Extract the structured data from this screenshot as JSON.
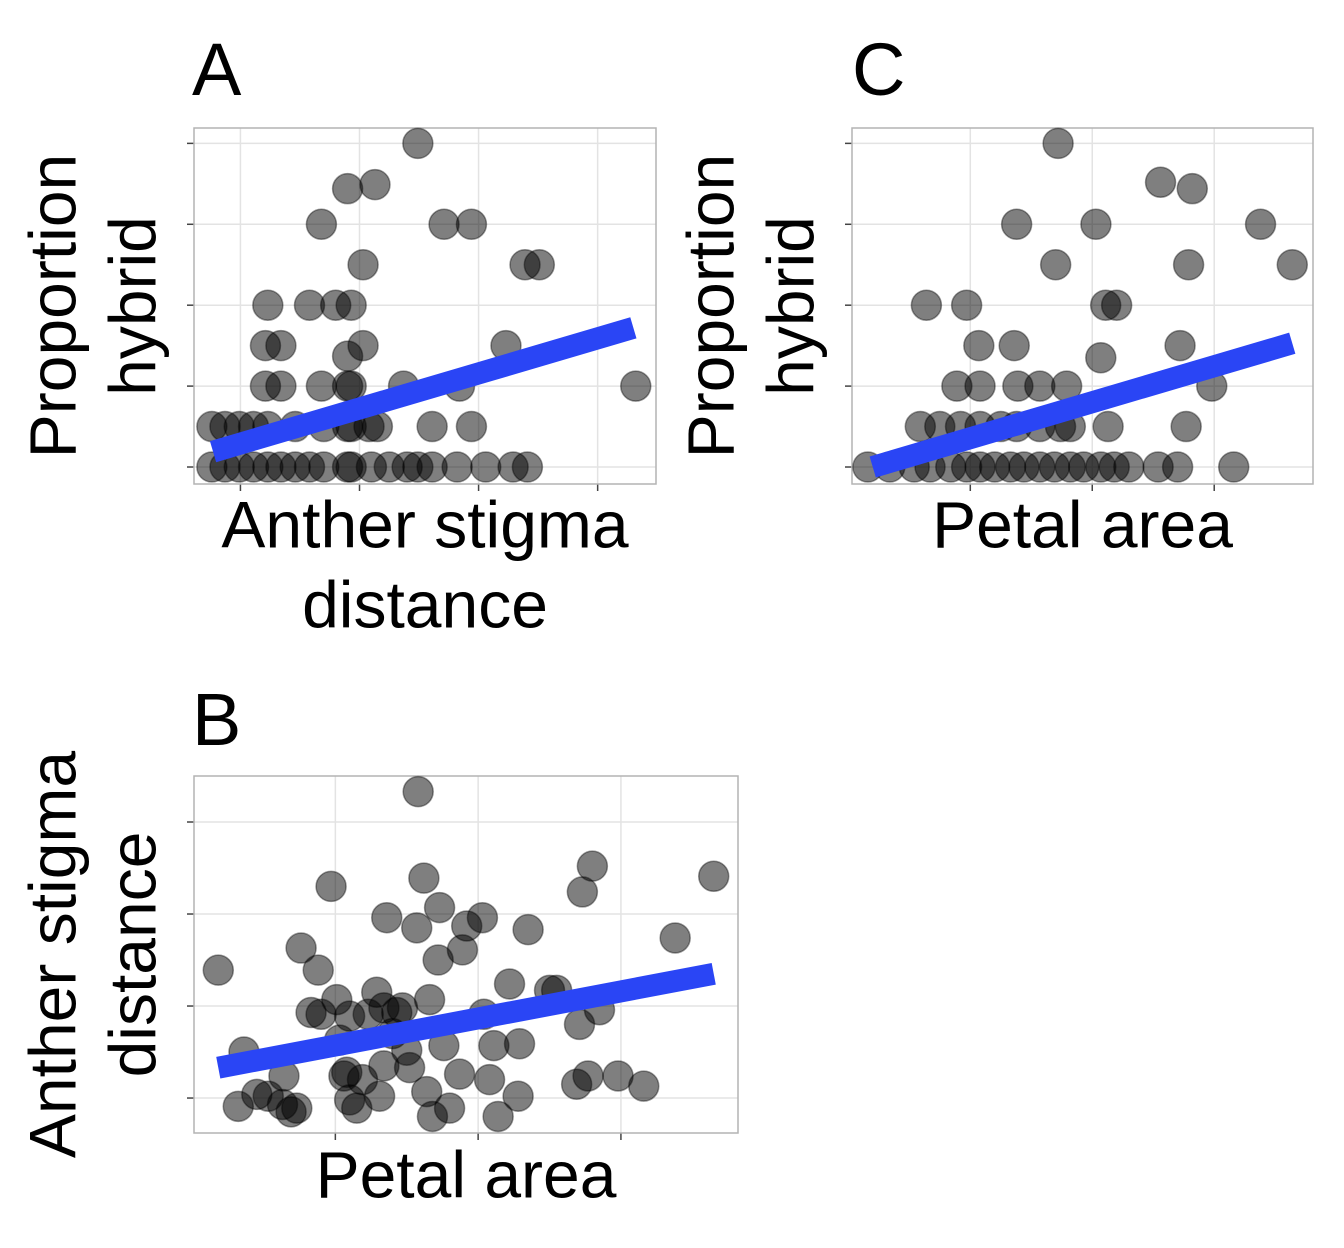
{
  "chart_data": [
    {
      "type": "scatter",
      "title": "A",
      "xlabel": [
        "Anther stigma",
        "distance"
      ],
      "ylabel": [
        "Proportion",
        "hybrid"
      ],
      "color": "#000000",
      "alpha": 0.5,
      "grid": true,
      "x": [
        -0.24,
        -0.13,
        -0.01,
        0.11,
        0.23,
        0.34,
        0.46,
        0.58,
        0.7,
        0.9,
        0.93,
        1.1,
        1.25,
        1.4,
        1.49,
        1.61,
        1.82,
        2.06,
        2.29,
        2.41,
        -0.24,
        -0.13,
        -0.01,
        0.11,
        0.23,
        0.46,
        0.7,
        0.9,
        0.93,
        1.08,
        1.15,
        1.61,
        1.94,
        0.21,
        0.34,
        0.68,
        0.9,
        0.93,
        1.37,
        1.84,
        3.32,
        0.9,
        0.21,
        0.34,
        1.03,
        2.23,
        0.23,
        0.58,
        0.8,
        0.93,
        1.03,
        2.39,
        2.51,
        0.68,
        1.71,
        1.94,
        0.9,
        1.13,
        1.49
      ],
      "values": [
        0,
        0,
        0,
        0,
        0,
        0,
        0,
        0,
        0,
        0,
        0,
        0,
        0,
        0,
        0,
        0,
        0,
        0,
        0,
        0,
        0.5,
        0.5,
        0.5,
        0.5,
        0.5,
        0.5,
        0.5,
        0.5,
        0.5,
        0.5,
        0.5,
        0.5,
        0.5,
        1,
        1,
        1,
        1,
        1,
        1,
        1,
        1,
        1.37,
        1.5,
        1.5,
        1.5,
        1.5,
        2,
        2,
        2,
        2,
        2.5,
        2.5,
        2.5,
        3,
        3,
        3,
        3.44,
        3.49,
        4
      ],
      "trend": {
        "color": "#2a45f5",
        "x": [
          -0.23,
          3.3
        ],
        "values": [
          0.19,
          1.72
        ]
      },
      "xlim": [
        -0.39,
        3.49
      ],
      "ylim": [
        -0.21,
        4.19
      ],
      "xticks": [
        0,
        1,
        2,
        3
      ],
      "yticks": [
        0,
        1,
        2,
        3,
        4
      ]
    },
    {
      "type": "scatter",
      "title": "C",
      "xlabel": [
        "Petal area"
      ],
      "ylabel": [
        "Proportion",
        "hybrid"
      ],
      "color": "#000000",
      "alpha": 0.5,
      "grid": true,
      "x": [
        -0.84,
        -0.66,
        -0.46,
        -0.33,
        -0.16,
        -0.03,
        0.08,
        0.2,
        0.33,
        0.44,
        0.57,
        0.69,
        0.82,
        0.93,
        1.07,
        1.18,
        1.3,
        1.54,
        1.7,
        2.16,
        -0.41,
        -0.25,
        -0.08,
        0.08,
        0.25,
        0.38,
        0.57,
        0.74,
        0.82,
        1.13,
        1.77,
        -0.11,
        0.08,
        0.39,
        0.57,
        0.79,
        1.98,
        0.07,
        0.36,
        1.07,
        1.72,
        -0.36,
        -0.03,
        1.11,
        1.2,
        0.7,
        1.79,
        2.64,
        0.38,
        1.03,
        2.38,
        1.56,
        1.82,
        0.72
      ],
      "values": [
        0,
        0,
        0,
        0,
        0,
        0,
        0,
        0,
        0,
        0,
        0,
        0,
        0,
        0,
        0,
        0,
        0,
        0,
        0,
        0,
        0.5,
        0.5,
        0.5,
        0.5,
        0.5,
        0.5,
        0.5,
        0.5,
        0.5,
        0.5,
        0.5,
        1,
        1,
        1,
        1,
        1,
        1,
        1.5,
        1.5,
        1.35,
        1.5,
        2,
        2,
        2,
        2,
        2.5,
        2.5,
        2.5,
        3,
        3,
        3,
        3.52,
        3.44,
        4
      ],
      "trend": {
        "color": "#2a45f5",
        "x": [
          -0.8,
          2.64
        ],
        "values": [
          0,
          1.53
        ]
      },
      "xlim": [
        -0.97,
        2.81
      ],
      "ylim": [
        -0.21,
        4.19
      ],
      "xticks": [
        0,
        1,
        2
      ],
      "yticks": [
        0,
        1,
        2,
        3,
        4
      ]
    },
    {
      "type": "scatter",
      "title": "B",
      "xlabel": [
        "Petal area"
      ],
      "ylabel": [
        "Anther stigma",
        "distance"
      ],
      "color": "#000000",
      "alpha": 0.5,
      "grid": true,
      "x": [
        -0.82,
        -0.64,
        -0.68,
        -0.47,
        -0.37,
        -0.31,
        -0.27,
        -0.36,
        -0.24,
        -0.12,
        -0.03,
        -0.17,
        -0.1,
        0.01,
        0.03,
        0.06,
        0.08,
        0.1,
        0.15,
        0.19,
        0.23,
        0.29,
        0.36,
        0.34,
        0.4,
        0.31,
        0.34,
        0.43,
        0.5,
        0.52,
        0.57,
        0.58,
        0.62,
        0.66,
        0.64,
        0.68,
        0.73,
        0.72,
        0.76,
        0.8,
        0.89,
        0.92,
        0.87,
        1.03,
        1.04,
        1.08,
        1.11,
        1.14,
        1.22,
        1.29,
        1.28,
        1.35,
        1.5,
        1.55,
        1.69,
        1.71,
        1.73,
        1.8,
        1.85,
        1.98,
        2.16,
        2.38,
        2.65,
        1.77,
        -0.55,
        0.1,
        0.47
      ],
      "values": [
        1.39,
        0.5,
        -0.09,
        0.02,
        -0.07,
        -0.15,
        -0.11,
        0.24,
        1.63,
        1.39,
        2.3,
        0.93,
        0.91,
        1.07,
        0.63,
        0.24,
        0.28,
        -0.02,
        -0.11,
        0.2,
        0.91,
        1.15,
        1.96,
        0.98,
        0.7,
        0.02,
        0.35,
        0.93,
        0.52,
        0.33,
        1.85,
        3.33,
        2.39,
        1.07,
        0.07,
        -0.2,
        2.07,
        1.5,
        0.57,
        -0.11,
        1.61,
        1.87,
        0.26,
        1.96,
        0.91,
        0.2,
        0.57,
        -0.2,
        1.24,
        0.59,
        0.02,
        1.83,
        1.17,
        1.17,
        0.15,
        0.8,
        2.24,
        2.52,
        0.96,
        0.24,
        0.13,
        1.74,
        2.41,
        0.24,
        0.04,
        0.89,
        0.98
      ],
      "trend": {
        "color": "#2a45f5",
        "x": [
          -0.82,
          2.65
        ],
        "values": [
          0.33,
          1.35
        ]
      },
      "xlim": [
        -0.99,
        2.82
      ],
      "ylim": [
        -0.38,
        3.5
      ],
      "xticks": [
        0,
        1,
        2
      ],
      "yticks": [
        0,
        1,
        2,
        3
      ]
    }
  ]
}
